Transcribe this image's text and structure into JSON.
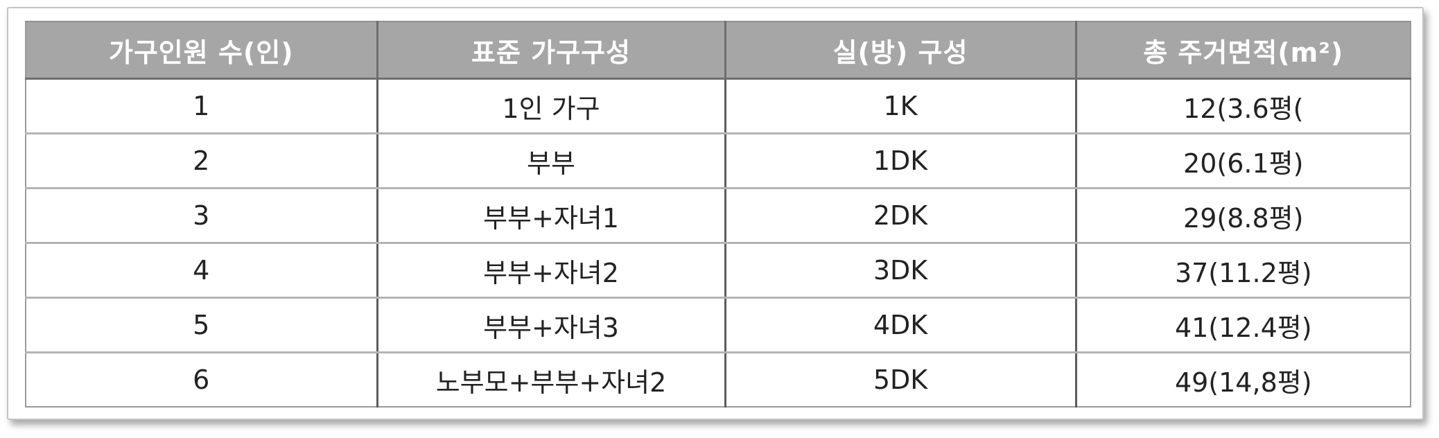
{
  "table": {
    "headers": [
      "가구인원 수(인)",
      "표준 가구구성",
      "실(방) 구성",
      "총 주거면적(m²)"
    ],
    "rows": [
      [
        "1",
        "1인 가구",
        "1K",
        "12(3.6평("
      ],
      [
        "2",
        "부부",
        "1DK",
        "20(6.1평)"
      ],
      [
        "3",
        "부부+자녀1",
        "2DK",
        "29(8.8평)"
      ],
      [
        "4",
        "부부+자녀2",
        "3DK",
        "37(11.2평)"
      ],
      [
        "5",
        "부부+자녀3",
        "4DK",
        "41(12.4평)"
      ],
      [
        "6",
        "노부모+부부+자녀2",
        "5DK",
        "49(14,8평)"
      ]
    ]
  }
}
